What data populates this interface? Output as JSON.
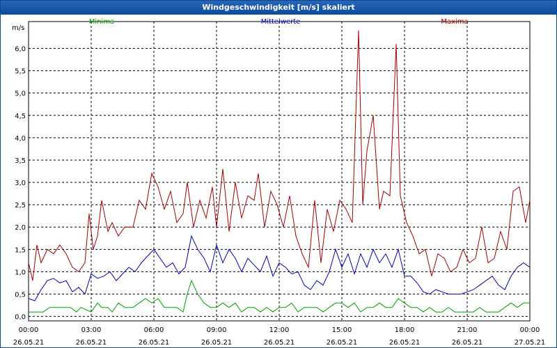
{
  "window": {
    "title": "Windgeschwindigkeit [m/s] skaliert"
  },
  "chart_data": {
    "type": "line",
    "title": "Windgeschwindigkeit [m/s] skaliert",
    "ylabel": "m/s",
    "ylim": [
      -0.1,
      6.6
    ],
    "yticks": [
      "0,0",
      "0,5",
      "1,0",
      "1,5",
      "2,0",
      "2,5",
      "3,0",
      "3,5",
      "4,0",
      "4,5",
      "5,0",
      "5,5",
      "6,0"
    ],
    "xlim": [
      0,
      24
    ],
    "xticks": [
      {
        "time": "00:00",
        "date": "26.05.21"
      },
      {
        "time": "03:00",
        "date": "26.05.21"
      },
      {
        "time": "06:00",
        "date": "26.05.21"
      },
      {
        "time": "09:00",
        "date": "26.05.21"
      },
      {
        "time": "12:00",
        "date": "26.05.21"
      },
      {
        "time": "15:00",
        "date": "26.05.21"
      },
      {
        "time": "18:00",
        "date": "26.05.21"
      },
      {
        "time": "21:00",
        "date": "26.05.21"
      },
      {
        "time": "00:00",
        "date": "27.05.21"
      }
    ],
    "series": [
      {
        "name": "Minima",
        "color": "#00a000",
        "x": [
          0,
          0.7,
          1,
          1.5,
          2,
          2.3,
          2.5,
          3,
          3.3,
          3.5,
          3.8,
          4,
          4.3,
          4.6,
          5,
          5.3,
          5.6,
          5.9,
          6.2,
          6.5,
          6.8,
          7.1,
          7.4,
          7.6,
          7.8,
          8.1,
          8.4,
          8.7,
          9,
          9.3,
          9.6,
          9.9,
          10.2,
          10.5,
          10.8,
          11.1,
          11.4,
          11.7,
          12,
          12.3,
          12.6,
          12.9,
          13.2,
          13.5,
          13.8,
          14.1,
          14.4,
          14.7,
          15,
          15.3,
          15.6,
          15.9,
          16.2,
          16.5,
          16.8,
          17.1,
          17.4,
          17.7,
          18,
          18.3,
          18.6,
          18.9,
          19.2,
          19.5,
          19.8,
          20.1,
          20.4,
          20.7,
          21,
          21.3,
          21.6,
          21.9,
          22.2,
          22.5,
          22.8,
          23.1,
          23.4,
          23.7,
          24
        ],
        "values": [
          0.1,
          0.1,
          0.2,
          0.2,
          0.2,
          0.1,
          0.2,
          0.1,
          0.3,
          0.2,
          0.2,
          0.1,
          0.3,
          0.2,
          0.2,
          0.3,
          0.4,
          0.3,
          0.4,
          0.2,
          0.2,
          0.2,
          0.1,
          0.5,
          0.8,
          0.5,
          0.3,
          0.2,
          0.2,
          0.3,
          0.2,
          0.3,
          0.1,
          0.2,
          0.2,
          0.1,
          0.2,
          0.1,
          0.2,
          0.2,
          0.3,
          0.1,
          0.2,
          0.2,
          0.2,
          0.1,
          0.2,
          0.3,
          0.3,
          0.2,
          0.3,
          0.1,
          0.2,
          0.2,
          0.3,
          0.2,
          0.2,
          0.4,
          0.3,
          0.2,
          0.2,
          0.1,
          0.2,
          0.1,
          0.1,
          0.2,
          0.1,
          0.1,
          0.1,
          0.1,
          0.2,
          0.1,
          0.1,
          0.1,
          0.2,
          0.3,
          0.2,
          0.3,
          0.3
        ]
      },
      {
        "name": "Mittelwerte",
        "color": "#0000b4",
        "x": [
          0,
          0.3,
          0.6,
          0.9,
          1.2,
          1.5,
          1.8,
          2.1,
          2.4,
          2.7,
          3,
          3.3,
          3.6,
          3.9,
          4.2,
          4.5,
          4.8,
          5.1,
          5.4,
          5.7,
          6,
          6.3,
          6.6,
          6.9,
          7.2,
          7.5,
          7.8,
          8.1,
          8.4,
          8.7,
          9,
          9.3,
          9.6,
          9.9,
          10.2,
          10.5,
          10.8,
          11.1,
          11.4,
          11.7,
          12,
          12.3,
          12.6,
          12.9,
          13.2,
          13.5,
          13.8,
          14.1,
          14.4,
          14.7,
          15,
          15.3,
          15.6,
          15.9,
          16.2,
          16.5,
          16.8,
          17.1,
          17.4,
          17.7,
          18,
          18.3,
          18.6,
          18.9,
          19.2,
          19.5,
          19.8,
          20.1,
          20.4,
          20.7,
          21,
          21.3,
          21.6,
          21.9,
          22.2,
          22.5,
          22.8,
          23.1,
          23.4,
          23.7,
          24
        ],
        "values": [
          0.4,
          0.35,
          0.6,
          0.8,
          0.85,
          0.75,
          0.8,
          0.55,
          0.65,
          0.5,
          0.95,
          0.85,
          0.9,
          1.0,
          0.8,
          0.95,
          1.1,
          1.0,
          1.2,
          1.35,
          1.5,
          1.3,
          1.1,
          1.2,
          0.95,
          1.1,
          1.8,
          1.5,
          1.3,
          1.0,
          1.6,
          1.2,
          1.5,
          1.3,
          1.0,
          1.3,
          1.15,
          1.0,
          1.35,
          0.9,
          1.2,
          1.1,
          0.95,
          1.0,
          0.7,
          0.6,
          0.8,
          0.7,
          1.0,
          1.5,
          1.1,
          1.4,
          0.95,
          1.4,
          1.1,
          1.5,
          1.2,
          1.4,
          1.1,
          1.5,
          0.9,
          0.9,
          0.75,
          0.55,
          0.5,
          0.6,
          0.55,
          0.5,
          0.5,
          0.5,
          0.55,
          0.6,
          0.7,
          0.8,
          0.9,
          0.7,
          0.6,
          0.9,
          1.1,
          1.2,
          1.1
        ]
      },
      {
        "name": "Maxima",
        "color": "#a00000",
        "x": [
          0,
          0.2,
          0.4,
          0.6,
          0.9,
          1.2,
          1.5,
          1.8,
          2.1,
          2.4,
          2.7,
          2.9,
          3.1,
          3.3,
          3.5,
          3.8,
          4,
          4.3,
          4.6,
          5,
          5.3,
          5.6,
          5.9,
          6.2,
          6.5,
          6.8,
          7.1,
          7.4,
          7.6,
          7.9,
          8.2,
          8.5,
          8.8,
          9,
          9.3,
          9.6,
          9.9,
          10.2,
          10.5,
          10.8,
          11,
          11.3,
          11.6,
          11.9,
          12.2,
          12.5,
          12.8,
          13.1,
          13.4,
          13.7,
          14,
          14.3,
          14.6,
          14.9,
          15.2,
          15.5,
          15.8,
          16,
          16.2,
          16.5,
          16.8,
          17,
          17.3,
          17.6,
          17.8,
          18.1,
          18.4,
          18.7,
          19,
          19.3,
          19.6,
          19.9,
          20.2,
          20.5,
          20.8,
          21.1,
          21.4,
          21.7,
          22,
          22.3,
          22.6,
          22.9,
          23.2,
          23.5,
          23.8,
          24
        ],
        "values": [
          1.2,
          0.8,
          1.6,
          1.2,
          1.5,
          1.4,
          1.6,
          1.4,
          1.1,
          1.0,
          1.2,
          2.3,
          1.5,
          1.8,
          2.6,
          1.9,
          2.1,
          1.8,
          2.0,
          2.0,
          2.6,
          2.4,
          3.2,
          2.9,
          2.4,
          2.8,
          2.1,
          2.3,
          3.0,
          2.0,
          2.6,
          2.2,
          2.9,
          2.0,
          3.3,
          1.9,
          3.0,
          2.2,
          2.7,
          2.6,
          3.2,
          2.0,
          2.8,
          2.5,
          2.0,
          2.7,
          1.8,
          1.4,
          1.1,
          2.6,
          1.2,
          2.4,
          1.9,
          2.6,
          2.4,
          2.1,
          6.4,
          2.5,
          3.7,
          4.5,
          2.4,
          2.8,
          2.7,
          6.1,
          2.7,
          2.1,
          1.8,
          1.4,
          1.5,
          0.9,
          1.4,
          1.3,
          1.0,
          1.1,
          1.5,
          1.2,
          1.3,
          2.0,
          1.2,
          1.3,
          1.9,
          1.5,
          2.8,
          2.9,
          2.1,
          2.6
        ]
      }
    ]
  }
}
